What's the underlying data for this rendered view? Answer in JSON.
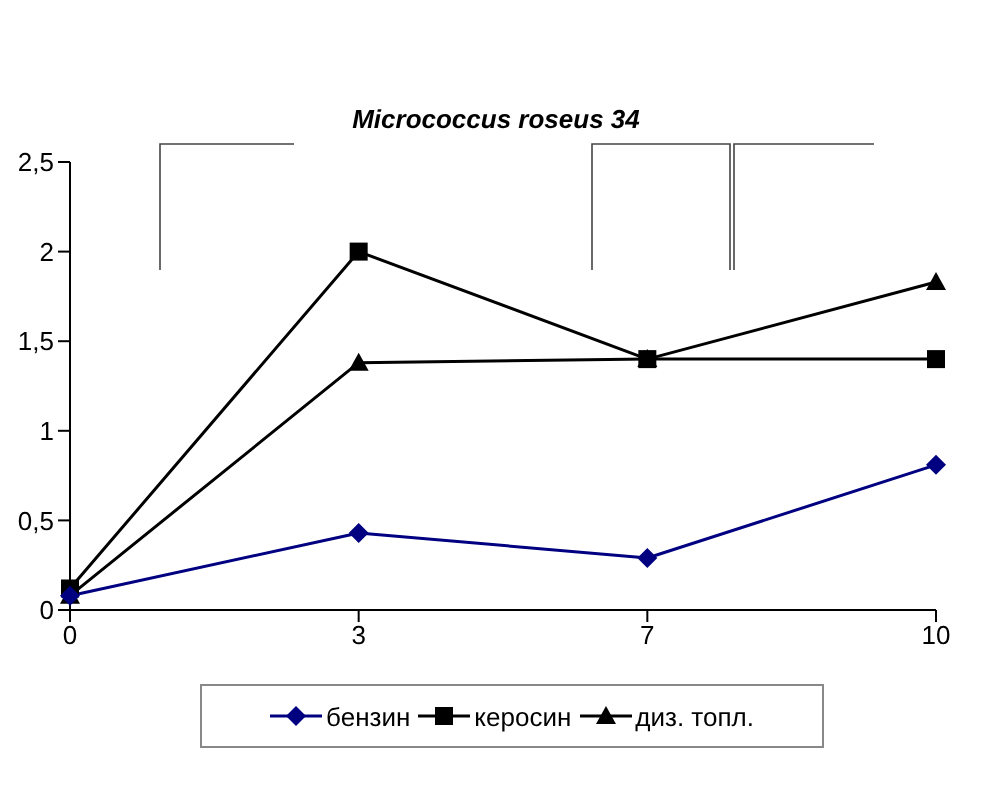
{
  "chart_data": {
    "type": "line",
    "title": "Micrococcus roseus 34",
    "categories": [
      "0",
      "3",
      "7",
      "10"
    ],
    "series": [
      {
        "name": "бензин",
        "color": "#000080",
        "marker": "diamond",
        "values": [
          0.08,
          0.43,
          0.29,
          0.81
        ]
      },
      {
        "name": "керосин",
        "color": "#000000",
        "marker": "square",
        "values": [
          0.12,
          2.0,
          1.4,
          1.4
        ]
      },
      {
        "name": "диз. топл.",
        "color": "#000000",
        "marker": "triangle",
        "values": [
          0.08,
          1.38,
          1.4,
          1.83
        ]
      }
    ],
    "ylim": [
      0,
      2.5
    ],
    "yticks": [
      0,
      {
        "value": 0.5,
        "label": "0,5"
      },
      1,
      {
        "value": 1.5,
        "label": "1,5"
      },
      2,
      {
        "value": 2.5,
        "label": "2,5"
      }
    ],
    "grid": false,
    "legend": "bottom"
  }
}
